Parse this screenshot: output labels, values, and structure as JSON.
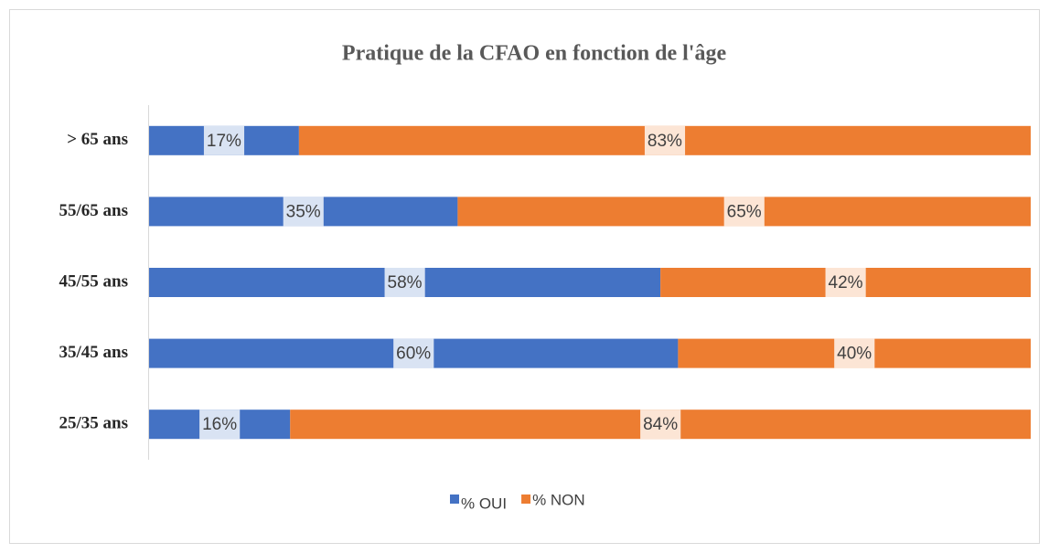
{
  "chart_data": {
    "type": "stacked-bar-horizontal",
    "title": "Pratique de la CFAO en fonction de l'âge",
    "categories": [
      "> 65 ans",
      "55/65 ans",
      "45/55 ans",
      "35/45 ans",
      "25/35 ans"
    ],
    "series": [
      {
        "name": "% OUI",
        "color": "#4472c4",
        "values": [
          17,
          35,
          58,
          60,
          16
        ],
        "value_labels": [
          "17%",
          "35%",
          "58%",
          "60%",
          "16%"
        ]
      },
      {
        "name": "% NON",
        "color": "#ed7d31",
        "values": [
          83,
          65,
          42,
          40,
          84
        ],
        "value_labels": [
          "83%",
          "65%",
          "42%",
          "40%",
          "84%"
        ]
      }
    ],
    "legend": "bottom"
  }
}
